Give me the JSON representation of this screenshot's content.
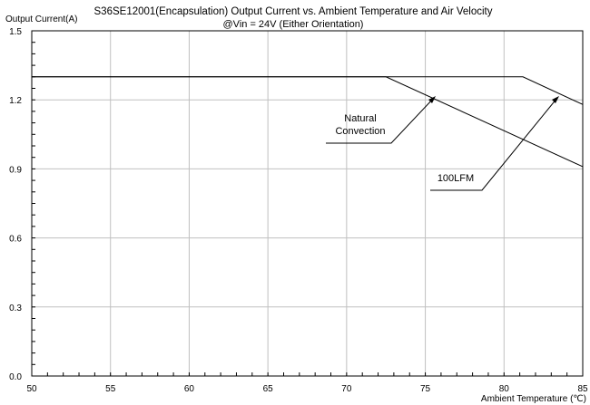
{
  "chart_data": {
    "type": "line",
    "title": "S36SE12001(Encapsulation)  Output Current vs. Ambient Temperature and Air Velocity",
    "subtitle": "@Vin = 24V (Either Orientation)",
    "xlabel": "Ambient Temperature (℃)",
    "ylabel": "Output Current(A)",
    "xlim": [
      50,
      85
    ],
    "ylim": [
      0.0,
      1.5
    ],
    "x_ticks": [
      50,
      55,
      60,
      65,
      70,
      75,
      80,
      85
    ],
    "y_ticks": [
      0.0,
      0.3,
      0.6,
      0.9,
      1.2,
      1.5
    ],
    "x_tick_labels": [
      "50",
      "55",
      "60",
      "65",
      "70",
      "75",
      "80",
      "85"
    ],
    "y_tick_labels": [
      "0.0",
      "0.3",
      "0.6",
      "0.9",
      "1.2",
      "1.5"
    ],
    "grid": true,
    "series": [
      {
        "label": "Natural Convection",
        "x": [
          50,
          72.5,
          85
        ],
        "y": [
          1.3,
          1.3,
          0.91
        ]
      },
      {
        "label": "100LFM",
        "x": [
          50,
          81.2,
          85
        ],
        "y": [
          1.3,
          1.3,
          1.18
        ]
      }
    ],
    "annotations": [
      {
        "text_lines": [
          "Natural",
          "Convection"
        ],
        "points_to": {
          "x": 75.9,
          "y": 1.21
        }
      },
      {
        "text_lines": [
          "100LFM"
        ],
        "points_to": {
          "x": 83.8,
          "y": 1.21
        }
      }
    ],
    "colors": {
      "line": "#000000",
      "grid": "#c0c0c0",
      "axis": "#000000"
    }
  }
}
